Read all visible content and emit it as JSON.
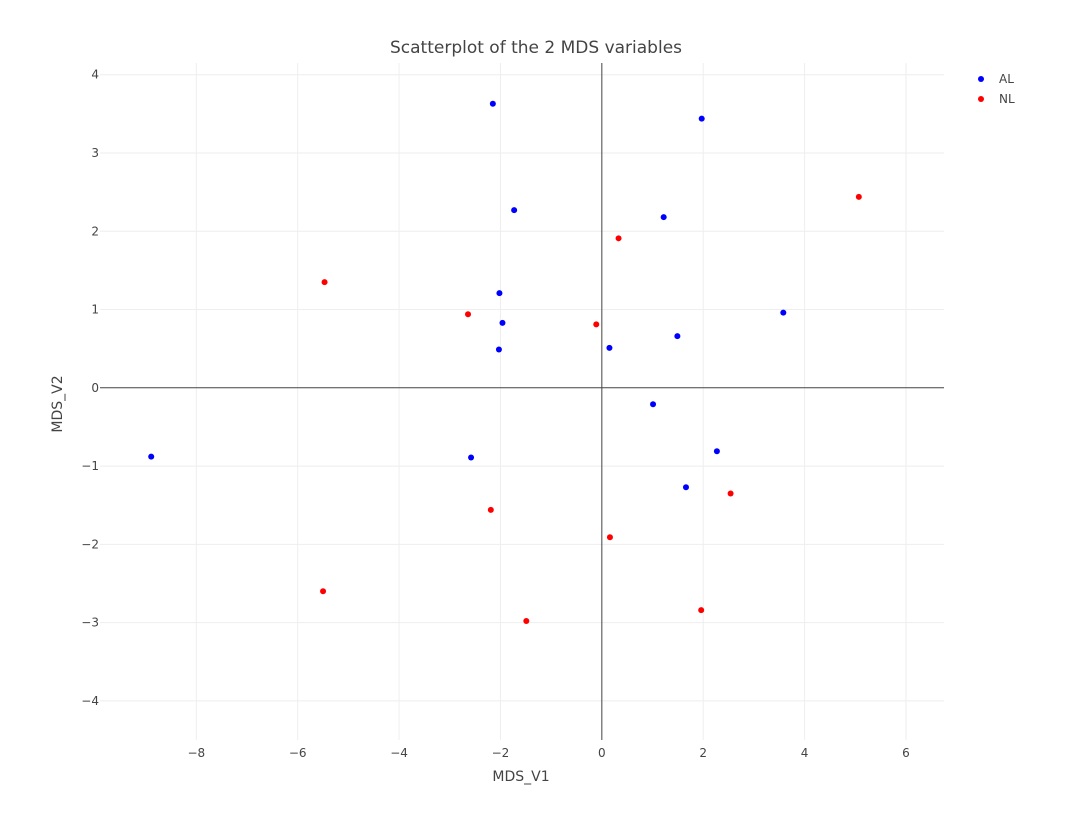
{
  "chart_data": {
    "type": "scatter",
    "title": "Scatterplot of the 2 MDS variables",
    "xlabel": "MDS_V1",
    "ylabel": "MDS_V2",
    "xlim": [
      -9.9,
      6.75
    ],
    "ylim": [
      -4.5,
      4.15
    ],
    "xticks": [
      -8,
      -6,
      -4,
      -2,
      0,
      2,
      4,
      6
    ],
    "yticks": [
      -4,
      -3,
      -2,
      -1,
      0,
      1,
      2,
      3,
      4
    ],
    "xtick_labels": [
      "−8",
      "−6",
      "−4",
      "−2",
      "0",
      "2",
      "4",
      "6"
    ],
    "ytick_labels": [
      "−4",
      "−3",
      "−2",
      "−1",
      "0",
      "1",
      "2",
      "3",
      "4"
    ],
    "grid": true,
    "zero_lines": true,
    "legend_position": "top-right",
    "series": [
      {
        "name": "AL",
        "color": "#0000ff",
        "points": [
          {
            "x": -2.15,
            "y": 3.63
          },
          {
            "x": 1.97,
            "y": 3.44
          },
          {
            "x": -1.73,
            "y": 2.27
          },
          {
            "x": 1.22,
            "y": 2.18
          },
          {
            "x": -2.02,
            "y": 1.21
          },
          {
            "x": -1.96,
            "y": 0.83
          },
          {
            "x": 3.58,
            "y": 0.96
          },
          {
            "x": -2.03,
            "y": 0.49
          },
          {
            "x": 0.15,
            "y": 0.51
          },
          {
            "x": 1.49,
            "y": 0.66
          },
          {
            "x": 1.01,
            "y": -0.21
          },
          {
            "x": -8.89,
            "y": -0.88
          },
          {
            "x": -2.58,
            "y": -0.89
          },
          {
            "x": 2.27,
            "y": -0.81
          },
          {
            "x": 1.66,
            "y": -1.27
          }
        ]
      },
      {
        "name": "NL",
        "color": "#ff0000",
        "points": [
          {
            "x": 5.07,
            "y": 2.44
          },
          {
            "x": 0.33,
            "y": 1.91
          },
          {
            "x": -5.47,
            "y": 1.35
          },
          {
            "x": -2.64,
            "y": 0.94
          },
          {
            "x": -0.11,
            "y": 0.81
          },
          {
            "x": 2.54,
            "y": -1.35
          },
          {
            "x": -2.19,
            "y": -1.56
          },
          {
            "x": 0.16,
            "y": -1.91
          },
          {
            "x": -5.5,
            "y": -2.6
          },
          {
            "x": -1.49,
            "y": -2.98
          },
          {
            "x": 1.96,
            "y": -2.84
          }
        ]
      }
    ]
  }
}
